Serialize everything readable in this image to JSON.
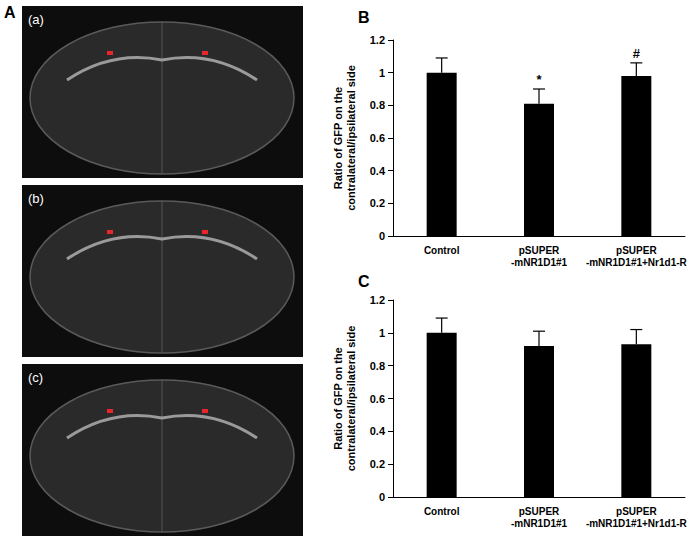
{
  "figure_a": {
    "label": "A",
    "images": [
      "(a)",
      "(b)",
      "(c)"
    ]
  },
  "chart_data": [
    {
      "type": "bar",
      "title": "B",
      "y_label": "Ratio of GFP on the\ncontralateral/ipsilateral side",
      "categories": [
        "Control",
        "pSUPER\n-mNR1D1#1",
        "pSUPER\n-mNR1D1#1+Nr1d1-R"
      ],
      "values": [
        1.0,
        0.81,
        0.98
      ],
      "errors": [
        0.09,
        0.09,
        0.08
      ],
      "color": "#000000",
      "ylim": [
        0,
        1.2
      ],
      "yticks": [
        0,
        0.2,
        0.4,
        0.6,
        0.8,
        1,
        1.2
      ],
      "annotations": [
        {
          "category": "pSUPER\n-mNR1D1#1",
          "text": "*"
        },
        {
          "category": "pSUPER\n-mNR1D1#1+Nr1d1-R",
          "text": "#"
        }
      ]
    },
    {
      "type": "bar",
      "title": "C",
      "y_label": "Ratio of GFP on the\ncontralateral/ipsilateral side",
      "categories": [
        "Control",
        "pSUPER\n-mNR1D1#1",
        "pSUPER\n-mNR1D1#1+Nr1d1-R"
      ],
      "values": [
        1.0,
        0.92,
        0.93
      ],
      "errors": [
        0.09,
        0.09,
        0.09
      ],
      "color": "#000000",
      "ylim": [
        0,
        1.2
      ],
      "yticks": [
        0,
        0.2,
        0.4,
        0.6,
        0.8,
        1,
        1.2
      ]
    }
  ]
}
